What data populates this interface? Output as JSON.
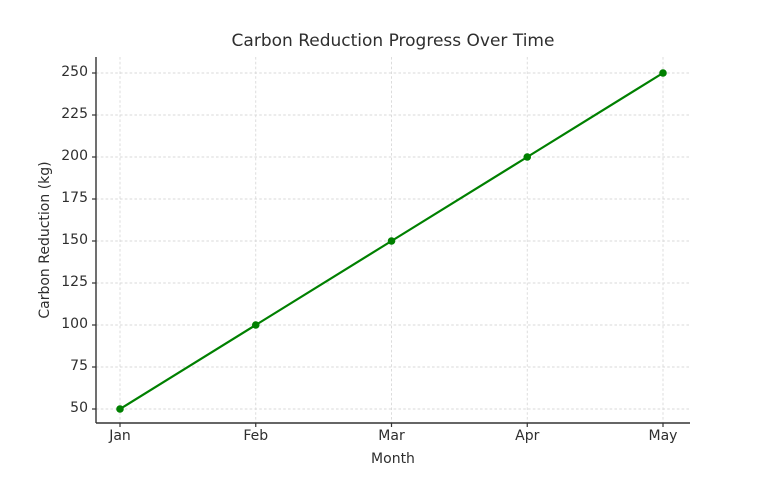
{
  "chart_data": {
    "type": "line",
    "title": "Carbon Reduction Progress Over Time",
    "xlabel": "Month",
    "ylabel": "Carbon Reduction (kg)",
    "categories": [
      "Jan",
      "Feb",
      "Mar",
      "Apr",
      "May"
    ],
    "values": [
      50,
      100,
      150,
      200,
      250
    ],
    "yticks": [
      50,
      75,
      100,
      125,
      150,
      175,
      200,
      225,
      250
    ],
    "ylim": [
      40,
      260
    ],
    "grid": true,
    "grid_linestyle": "dashed",
    "grid_color": "#d9d9d9",
    "legend_position": "none",
    "line_color": "#008000",
    "marker": "circle",
    "marker_color": "#008000",
    "axis_color": "#333333",
    "text_color": "#2e2e2e",
    "background": "#ffffff"
  }
}
